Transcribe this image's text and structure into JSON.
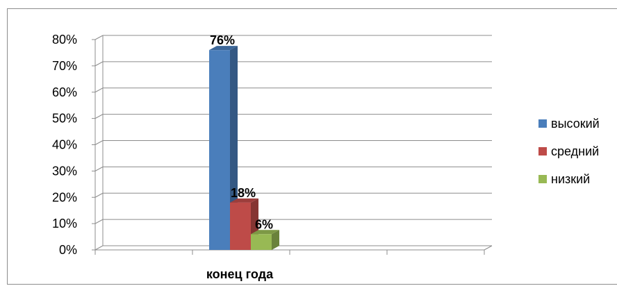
{
  "chart_data": {
    "type": "bar",
    "categories": [
      "конец года"
    ],
    "series": [
      {
        "name": "высокий",
        "values": [
          76
        ],
        "color": "#4a7ebb",
        "data_label": "76%"
      },
      {
        "name": "средний",
        "values": [
          18
        ],
        "color": "#be4b48",
        "data_label": "18%"
      },
      {
        "name": "низкий",
        "values": [
          6
        ],
        "color": "#98b954",
        "data_label": "6%"
      }
    ],
    "yticks": [
      "0%",
      "10%",
      "20%",
      "30%",
      "40%",
      "50%",
      "60%",
      "70%",
      "80%"
    ],
    "ylim": [
      0,
      80
    ],
    "grid": true,
    "legend": "right",
    "style": "3d-clustered-column"
  }
}
